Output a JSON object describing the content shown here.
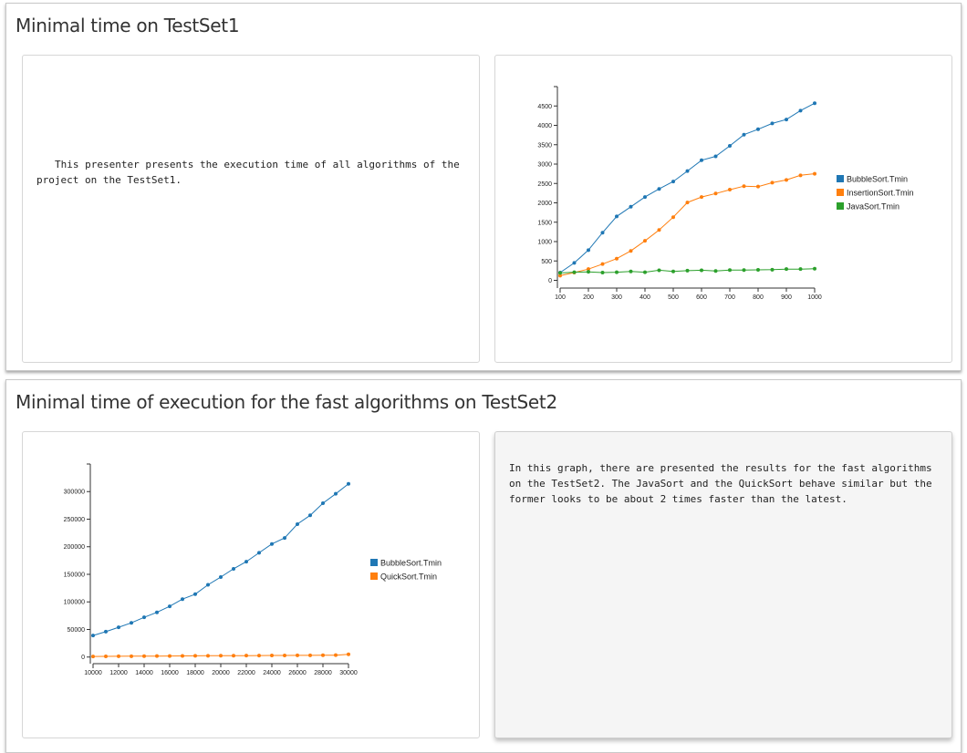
{
  "panels": [
    {
      "title": "Minimal time on TestSet1",
      "description": "This presenter presents the execution time of all algorithms of the project on the TestSet1."
    },
    {
      "title": "Minimal time of execution for the fast algorithms on TestSet2",
      "description": "In this graph, there are presented the results for the fast algorithms on the TestSet2. The JavaSort and the QuickSort behave similar but the former looks to be about 2 times faster than the latest."
    }
  ],
  "chart_data": [
    {
      "type": "line",
      "x": [
        100,
        150,
        200,
        250,
        300,
        350,
        400,
        450,
        500,
        550,
        600,
        650,
        700,
        750,
        800,
        850,
        900,
        950,
        1000
      ],
      "xticks": [
        100,
        200,
        300,
        400,
        500,
        600,
        700,
        800,
        900,
        1000
      ],
      "yticks": [
        0,
        500,
        1000,
        1500,
        2000,
        2500,
        3000,
        3500,
        4000,
        4500
      ],
      "xlim": [
        100,
        1000
      ],
      "ylim": [
        -200,
        5000
      ],
      "legend_position": "right",
      "series": [
        {
          "name": "BubbleSort.Tmin",
          "color": "#1f77b4",
          "values": [
            200,
            450,
            780,
            1230,
            1650,
            1900,
            2150,
            2360,
            2550,
            2820,
            3100,
            3200,
            3470,
            3760,
            3900,
            4050,
            4150,
            4380,
            4570
          ]
        },
        {
          "name": "InsertionSort.Tmin",
          "color": "#ff7f0e",
          "values": [
            120,
            200,
            290,
            420,
            560,
            760,
            1020,
            1300,
            1630,
            2010,
            2150,
            2240,
            2340,
            2430,
            2420,
            2520,
            2590,
            2710,
            2750
          ]
        },
        {
          "name": "JavaSort.Tmin",
          "color": "#2ca02c",
          "values": [
            190,
            210,
            220,
            200,
            210,
            230,
            210,
            260,
            230,
            250,
            260,
            240,
            265,
            265,
            270,
            275,
            290,
            290,
            300
          ]
        }
      ]
    },
    {
      "type": "line",
      "x": [
        10000,
        11000,
        12000,
        13000,
        14000,
        15000,
        16000,
        17000,
        18000,
        19000,
        20000,
        21000,
        22000,
        23000,
        24000,
        25000,
        26000,
        27000,
        28000,
        29000,
        30000
      ],
      "xticks": [
        10000,
        12000,
        14000,
        16000,
        18000,
        20000,
        22000,
        24000,
        26000,
        28000,
        30000
      ],
      "yticks": [
        0,
        50000,
        100000,
        150000,
        200000,
        250000,
        300000
      ],
      "xlim": [
        10000,
        30000
      ],
      "ylim": [
        -12000,
        350000
      ],
      "legend_position": "right",
      "series": [
        {
          "name": "BubbleSort.Tmin",
          "color": "#1f77b4",
          "values": [
            39000,
            46000,
            54000,
            62000,
            72000,
            81000,
            92000,
            105000,
            114000,
            131000,
            145000,
            160000,
            173000,
            189000,
            205000,
            216000,
            241000,
            257000,
            279000,
            296000,
            314000
          ]
        },
        {
          "name": "QuickSort.Tmin",
          "color": "#ff7f0e",
          "values": [
            1000,
            1200,
            1400,
            1500,
            1700,
            1800,
            1900,
            2000,
            2200,
            2300,
            2400,
            2500,
            2600,
            2700,
            2800,
            2900,
            3000,
            3100,
            3200,
            3400,
            5000
          ]
        }
      ]
    }
  ]
}
